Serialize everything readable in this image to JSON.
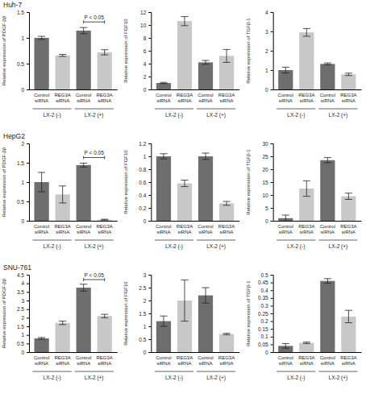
{
  "chart_data": [
    {
      "type": "bar",
      "title": "Huh-7",
      "ylabel": "Relative expression of PDGF-ββ",
      "categories": [
        "Control siRNA",
        "REG3A siRNA",
        "Control siRNA",
        "REG3A siRNA"
      ],
      "groups": [
        "LX-2 (-)",
        "LX-2 (+)"
      ],
      "values": [
        1.0,
        0.66,
        1.14,
        0.72
      ],
      "errors": [
        0.03,
        0.02,
        0.06,
        0.05
      ],
      "colors": [
        "#6e6e6e",
        "#c8c8c8",
        "#6e6e6e",
        "#c8c8c8"
      ],
      "ylim": [
        0,
        1.5
      ],
      "yticks": [
        0,
        0.5,
        1,
        1.5
      ],
      "annotation": "P < 0.05"
    },
    {
      "type": "bar",
      "ylabel": "Relative expression of FGF10",
      "categories": [
        "Control siRNA",
        "REG3A siRNA",
        "Control siRNA",
        "REG3A siRNA"
      ],
      "groups": [
        "LX-2 (-)",
        "LX-2 (+)"
      ],
      "values": [
        1.0,
        10.6,
        4.2,
        5.2
      ],
      "errors": [
        0.1,
        0.7,
        0.3,
        1.0
      ],
      "colors": [
        "#6e6e6e",
        "#c8c8c8",
        "#6e6e6e",
        "#c8c8c8"
      ],
      "ylim": [
        0,
        12
      ],
      "yticks": [
        0,
        2,
        4,
        6,
        8,
        10,
        12
      ]
    },
    {
      "type": "bar",
      "ylabel": "Relative expression of TGFβ-1",
      "categories": [
        "Control siRNA",
        "REG3A siRNA",
        "Control siRNA",
        "REG3A siRNA"
      ],
      "groups": [
        "LX-2 (-)",
        "LX-2 (+)"
      ],
      "values": [
        1.0,
        2.95,
        1.32,
        0.78
      ],
      "errors": [
        0.15,
        0.2,
        0.05,
        0.06
      ],
      "colors": [
        "#6e6e6e",
        "#c8c8c8",
        "#6e6e6e",
        "#c8c8c8"
      ],
      "ylim": [
        0,
        4
      ],
      "yticks": [
        0,
        1,
        2,
        3,
        4
      ]
    },
    {
      "type": "bar",
      "title": "HepG2",
      "ylabel": "Relative expression of PDGF-ββ",
      "categories": [
        "Control siRNA",
        "REG3A siRNA",
        "Control siRNA",
        "REG3A siRNA"
      ],
      "groups": [
        "LX-2 (-)",
        "LX-2 (+)"
      ],
      "values": [
        1.0,
        0.68,
        1.44,
        0.03
      ],
      "errors": [
        0.25,
        0.22,
        0.05,
        0.01
      ],
      "colors": [
        "#6e6e6e",
        "#c8c8c8",
        "#6e6e6e",
        "#c8c8c8"
      ],
      "ylim": [
        0,
        2
      ],
      "yticks": [
        0,
        0.5,
        1,
        1.5,
        2
      ],
      "annotation": "P < 0.05"
    },
    {
      "type": "bar",
      "ylabel": "Relative expression of FGF10",
      "categories": [
        "Control siRNA",
        "REG3A siRNA",
        "Control siRNA",
        "REG3A siRNA"
      ],
      "groups": [
        "LX-2 (-)",
        "LX-2 (+)"
      ],
      "values": [
        1.0,
        0.58,
        1.0,
        0.27
      ],
      "errors": [
        0.04,
        0.05,
        0.05,
        0.03
      ],
      "colors": [
        "#6e6e6e",
        "#c8c8c8",
        "#6e6e6e",
        "#c8c8c8"
      ],
      "ylim": [
        0,
        1.2
      ],
      "yticks": [
        0,
        0.2,
        0.4,
        0.6,
        0.8,
        1,
        1.2
      ]
    },
    {
      "type": "bar",
      "ylabel": "Relative expression of TGFβ-1",
      "categories": [
        "Control siRNA",
        "REG3A siRNA",
        "Control siRNA",
        "REG3A siRNA"
      ],
      "groups": [
        "LX-2 (-)",
        "LX-2 (+)"
      ],
      "values": [
        1.0,
        12.5,
        23.5,
        9.5
      ],
      "errors": [
        1.2,
        3.0,
        1.0,
        1.2
      ],
      "colors": [
        "#6e6e6e",
        "#c8c8c8",
        "#6e6e6e",
        "#c8c8c8"
      ],
      "ylim": [
        0,
        30
      ],
      "yticks": [
        0,
        5,
        10,
        15,
        20,
        25,
        30
      ]
    },
    {
      "type": "bar",
      "title": "SNU-761",
      "ylabel": "Relative expression of PDGF-ββ",
      "categories": [
        "Control siRNA",
        "REG3A siRNA",
        "Control siRNA",
        "REG3A siRNA"
      ],
      "groups": [
        "LX-2 (-)",
        "LX-2 (+)"
      ],
      "values": [
        0.8,
        1.7,
        3.75,
        2.1
      ],
      "errors": [
        0.05,
        0.1,
        0.2,
        0.1
      ],
      "colors": [
        "#6e6e6e",
        "#c8c8c8",
        "#6e6e6e",
        "#c8c8c8"
      ],
      "ylim": [
        0,
        4.5
      ],
      "yticks": [
        0,
        0.5,
        1,
        1.5,
        2,
        2.5,
        3,
        3.5,
        4,
        4.5
      ],
      "annotation": "P < 0.05"
    },
    {
      "type": "bar",
      "ylabel": "Relative expression of FGF10",
      "categories": [
        "Control siRNA",
        "REG3A siRNA",
        "Control siRNA",
        "REG3A siRNA"
      ],
      "groups": [
        "LX-2 (-)",
        "LX-2 (+)"
      ],
      "values": [
        1.2,
        2.0,
        2.2,
        0.7
      ],
      "errors": [
        0.2,
        0.8,
        0.3,
        0.03
      ],
      "colors": [
        "#6e6e6e",
        "#c8c8c8",
        "#6e6e6e",
        "#c8c8c8"
      ],
      "ylim": [
        0,
        3
      ],
      "yticks": [
        0,
        0.5,
        1,
        1.5,
        2,
        2.5,
        3
      ]
    },
    {
      "type": "bar",
      "ylabel": "Relative expression of TGFβ-1",
      "categories": [
        "Control siRNA",
        "REG3A siRNA",
        "Control siRNA",
        "REG3A siRNA"
      ],
      "groups": [
        "LX-2 (-)",
        "LX-2 (+)"
      ],
      "values": [
        0.04,
        0.06,
        0.46,
        0.23
      ],
      "errors": [
        0.015,
        0.005,
        0.015,
        0.04
      ],
      "colors": [
        "#6e6e6e",
        "#c8c8c8",
        "#6e6e6e",
        "#c8c8c8"
      ],
      "ylim": [
        0,
        0.5
      ],
      "yticks": [
        0,
        0.05,
        0.1,
        0.15,
        0.2,
        0.25,
        0.3,
        0.35,
        0.4,
        0.45,
        0.5
      ]
    }
  ]
}
